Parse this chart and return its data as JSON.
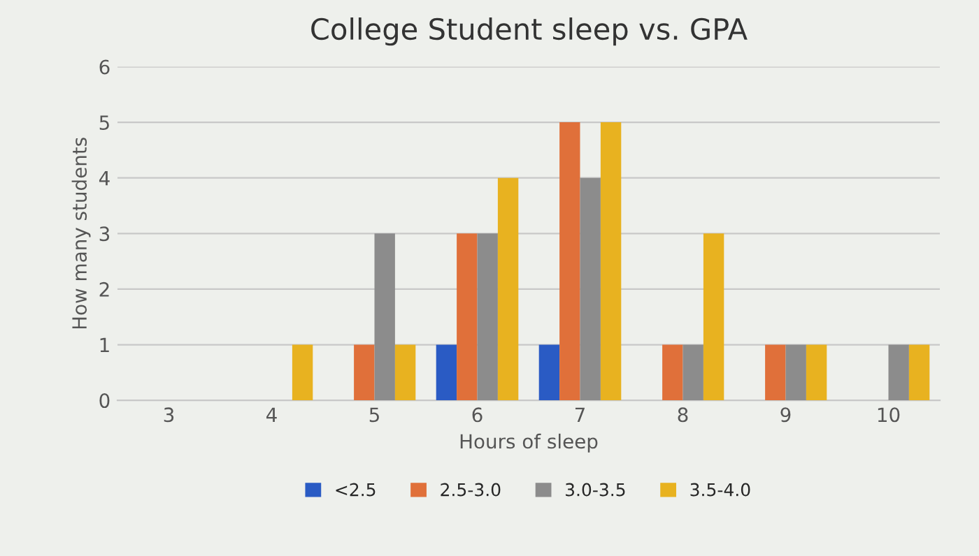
{
  "chart_data": {
    "type": "bar",
    "title": "College Student sleep vs. GPA",
    "xlabel": "Hours of sleep",
    "ylabel": "How many students",
    "categories": [
      "3",
      "4",
      "5",
      "6",
      "7",
      "8",
      "9",
      "10"
    ],
    "series": [
      {
        "name": "<2.5",
        "color": "#2a5bc4",
        "values": [
          null,
          null,
          null,
          1,
          1,
          null,
          null,
          null
        ]
      },
      {
        "name": "2.5-3.0",
        "color": "#e0703a",
        "values": [
          null,
          null,
          1,
          3,
          5,
          1,
          1,
          null
        ]
      },
      {
        "name": "3.0-3.5",
        "color": "#8c8c8c",
        "values": [
          null,
          null,
          3,
          3,
          4,
          1,
          1,
          1
        ]
      },
      {
        "name": "3.5-4.0",
        "color": "#e8b220",
        "values": [
          null,
          1,
          1,
          4,
          5,
          3,
          1,
          1
        ]
      }
    ],
    "ylim": [
      0,
      6
    ],
    "yticks": [
      0,
      1,
      2,
      3,
      4,
      5,
      6
    ],
    "grid": "y",
    "legend": "bottom"
  }
}
